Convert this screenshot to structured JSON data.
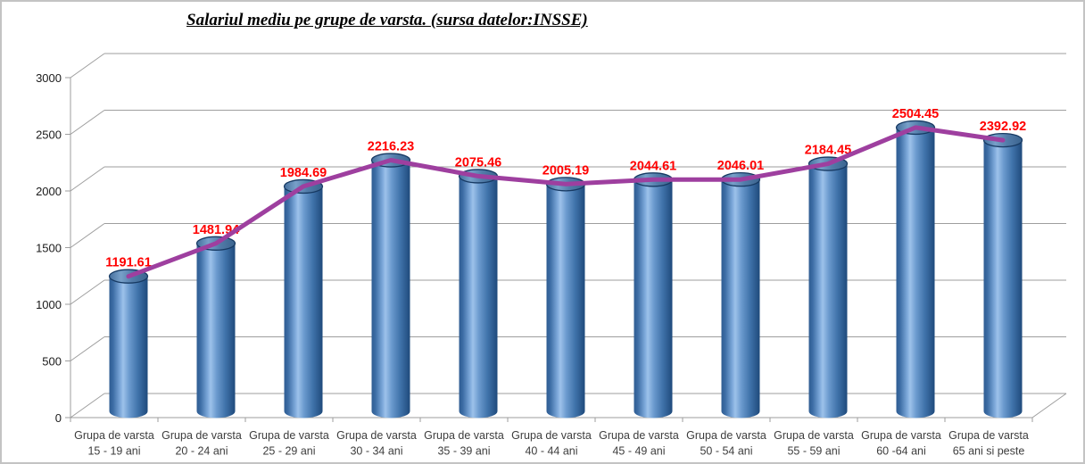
{
  "title": "Salariul mediu pe grupe de varsta. (sursa datelor:INSSE)",
  "chart_data": {
    "type": "bar",
    "subtype": "3d-cylinder-columns-with-overlay-line",
    "title": "Salariul mediu pe grupe de varsta. (sursa datelor:INSSE)",
    "categories": [
      {
        "top": "Grupa de varsta",
        "bottom": "15 - 19 ani"
      },
      {
        "top": "Grupa de varsta",
        "bottom": "20 - 24 ani"
      },
      {
        "top": "Grupa de varsta",
        "bottom": "25 - 29 ani"
      },
      {
        "top": "Grupa de varsta",
        "bottom": "30 - 34 ani"
      },
      {
        "top": "Grupa de varsta",
        "bottom": "35 - 39 ani"
      },
      {
        "top": "Grupa de varsta",
        "bottom": "40 - 44 ani"
      },
      {
        "top": "Grupa de varsta",
        "bottom": "45 - 49 ani"
      },
      {
        "top": "Grupa de varsta",
        "bottom": "50 - 54 ani"
      },
      {
        "top": "Grupa de varsta",
        "bottom": "55 - 59 ani"
      },
      {
        "top": "Grupa de varsta",
        "bottom": "60 -64 ani"
      },
      {
        "top": "Grupa de varsta",
        "bottom": "65 ani si peste"
      }
    ],
    "values": [
      1191.61,
      1481.94,
      1984.69,
      2216.23,
      2075.46,
      2005.19,
      2044.61,
      2046.01,
      2184.45,
      2504.45,
      2392.92
    ],
    "value_labels": [
      "1191.61",
      "1481.94",
      "1984.69",
      "2216.23",
      "2075.46",
      "2005.19",
      "2044.61",
      "2046.01",
      "2184.45",
      "2504.45",
      "2392.92"
    ],
    "yticks": [
      0,
      500,
      1000,
      1500,
      2000,
      2500,
      3000
    ],
    "ytick_labels": [
      "0",
      "500",
      "1000",
      "1500",
      "2000",
      "2500",
      "3000"
    ],
    "ylim": [
      0,
      3000
    ],
    "grid": true,
    "legend": false,
    "colors": {
      "bar_dark": "#1f4a7c",
      "bar_mid": "#4f81bd",
      "bar_light": "#9dc2ea",
      "bar_top_stroke": "#173a63",
      "line": "#9e3f9f",
      "value_label": "#ff0000",
      "axis": "#9e9e9e",
      "tick_label": "#3d3d3d",
      "title": "#000000"
    }
  }
}
